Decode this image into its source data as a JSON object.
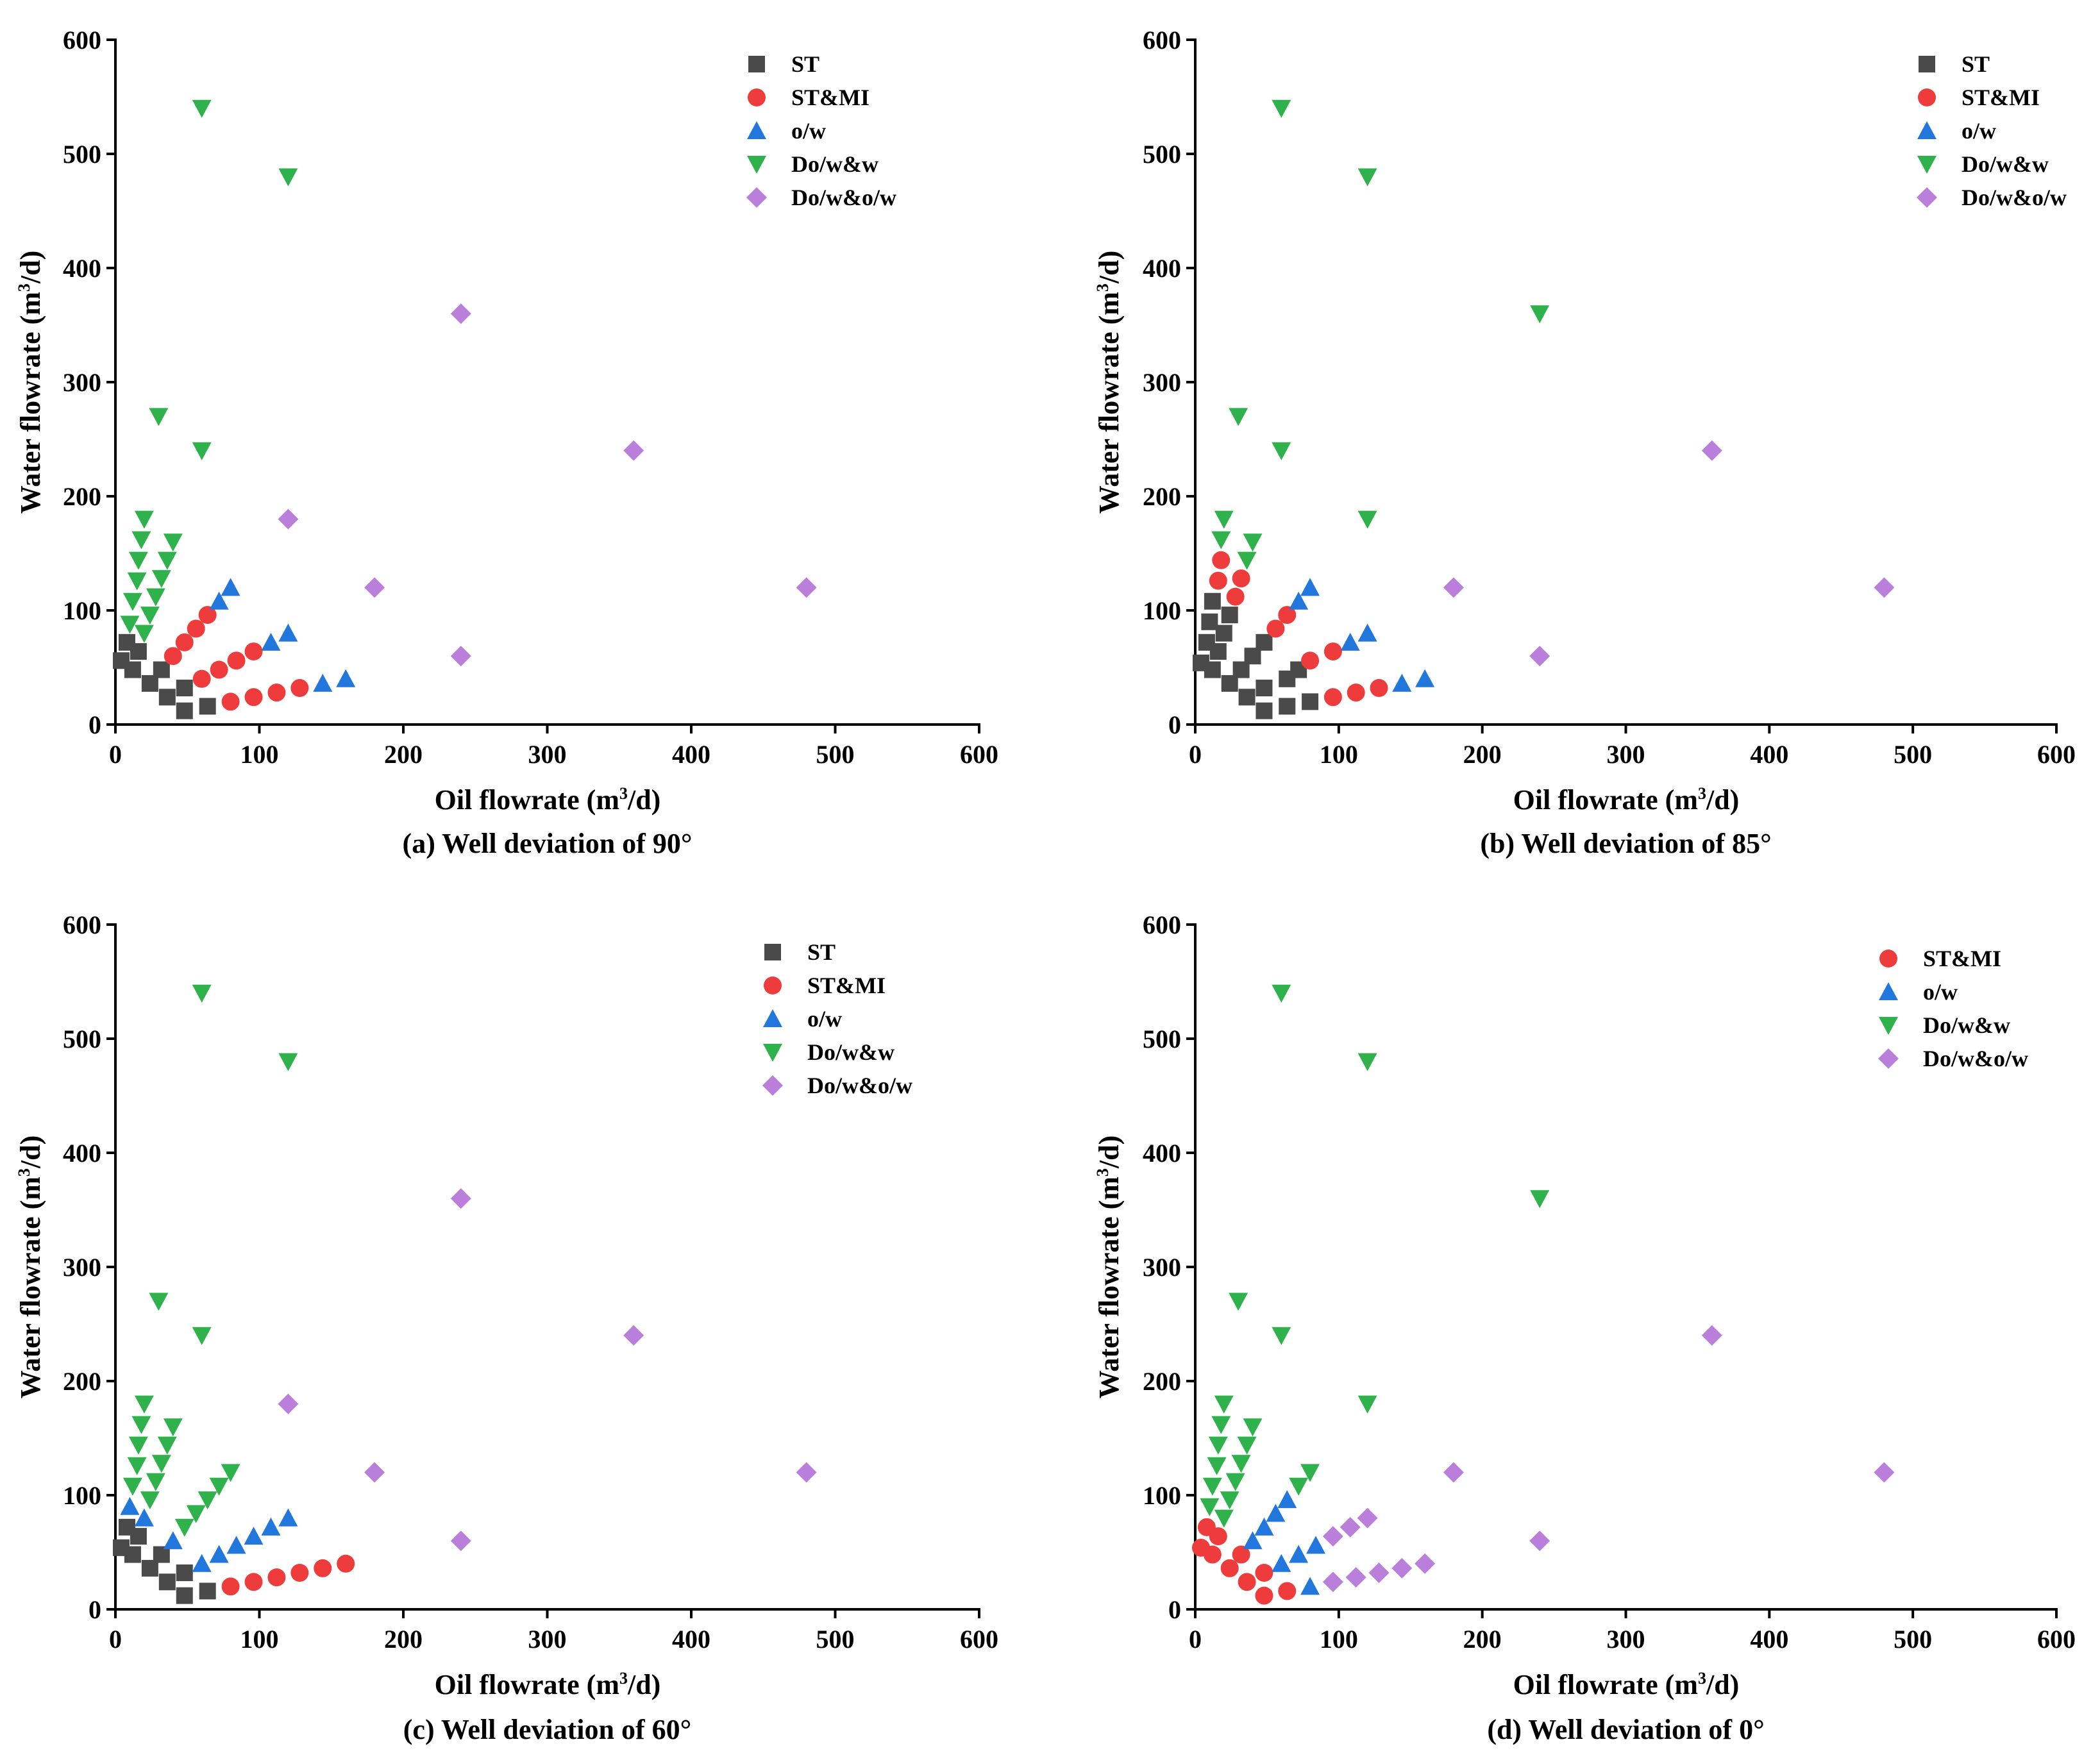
{
  "figure": {
    "styles": {
      "ST": {
        "marker": "square",
        "color": "#4a4a4a"
      },
      "ST&MI": {
        "marker": "circle",
        "color": "#ee3b3b"
      },
      "o/w": {
        "marker": "triangle-up",
        "color": "#2277dd"
      },
      "Do/w&w": {
        "marker": "triangle-down",
        "color": "#2fb24c"
      },
      "Do/w&o/w": {
        "marker": "diamond",
        "color": "#b97fdb"
      }
    }
  },
  "chart_data": [
    {
      "type": "scatter",
      "caption": "(a) Well deviation of 90°",
      "xlabel": "Oil flowrate (m3/d)",
      "ylabel": "Water flowrate (m3/d)",
      "xlabel_parts": [
        "Oil flowrate (m",
        "3",
        "/d)"
      ],
      "ylabel_parts": [
        "Water flowrate (m",
        "3",
        "/d)"
      ],
      "xlim": [
        0,
        600
      ],
      "ylim": [
        0,
        600
      ],
      "xticks": [
        0,
        100,
        200,
        300,
        400,
        500,
        600
      ],
      "yticks": [
        0,
        100,
        200,
        300,
        400,
        500,
        600
      ],
      "legend_position": "top-right",
      "legend": [
        "ST",
        "ST&MI",
        "o/w",
        "Do/w&w",
        "Do/w&o/w"
      ],
      "series": [
        {
          "name": "ST",
          "points": [
            [
              4,
              56
            ],
            [
              8,
              72
            ],
            [
              12,
              48
            ],
            [
              16,
              64
            ],
            [
              24,
              36
            ],
            [
              32,
              48
            ],
            [
              36,
              24
            ],
            [
              48,
              32
            ],
            [
              48,
              12
            ],
            [
              64,
              16
            ]
          ]
        },
        {
          "name": "ST&MI",
          "points": [
            [
              40,
              60
            ],
            [
              48,
              72
            ],
            [
              56,
              84
            ],
            [
              64,
              96
            ],
            [
              60,
              40
            ],
            [
              72,
              48
            ],
            [
              84,
              56
            ],
            [
              96,
              64
            ],
            [
              80,
              20
            ],
            [
              96,
              24
            ],
            [
              112,
              28
            ],
            [
              128,
              32
            ]
          ]
        },
        {
          "name": "o/w",
          "points": [
            [
              72,
              108
            ],
            [
              80,
              120
            ],
            [
              108,
              72
            ],
            [
              120,
              80
            ],
            [
              144,
              36
            ],
            [
              160,
              40
            ]
          ]
        },
        {
          "name": "Do/w&w",
          "points": [
            [
              10,
              88
            ],
            [
              12,
              108
            ],
            [
              15,
              126
            ],
            [
              16,
              144
            ],
            [
              18,
              162
            ],
            [
              20,
              180
            ],
            [
              20,
              80
            ],
            [
              24,
              96
            ],
            [
              28,
              112
            ],
            [
              32,
              128
            ],
            [
              36,
              144
            ],
            [
              40,
              160
            ],
            [
              30,
              270
            ],
            [
              60,
              240
            ],
            [
              60,
              540
            ],
            [
              120,
              480
            ]
          ]
        },
        {
          "name": "Do/w&o/w",
          "points": [
            [
              120,
              180
            ],
            [
              180,
              120
            ],
            [
              240,
              60
            ],
            [
              240,
              360
            ],
            [
              360,
              240
            ],
            [
              480,
              120
            ]
          ]
        }
      ]
    },
    {
      "type": "scatter",
      "caption": "(b) Well deviation of 85°",
      "xlabel": "Oil flowrate (m3/d)",
      "ylabel": "Water flowrate (m3/d)",
      "xlabel_parts": [
        "Oil flowrate (m",
        "3",
        "/d)"
      ],
      "ylabel_parts": [
        "Water flowrate (m",
        "3",
        "/d)"
      ],
      "xlim": [
        0,
        600
      ],
      "ylim": [
        0,
        600
      ],
      "xticks": [
        0,
        100,
        200,
        300,
        400,
        500,
        600
      ],
      "yticks": [
        0,
        100,
        200,
        300,
        400,
        500,
        600
      ],
      "legend_position": "top-right",
      "legend": [
        "ST",
        "ST&MI",
        "o/w",
        "Do/w&w",
        "Do/w&o/w"
      ],
      "series": [
        {
          "name": "ST",
          "points": [
            [
              4,
              54
            ],
            [
              8,
              72
            ],
            [
              10,
              90
            ],
            [
              12,
              108
            ],
            [
              12,
              48
            ],
            [
              16,
              64
            ],
            [
              20,
              80
            ],
            [
              24,
              96
            ],
            [
              24,
              36
            ],
            [
              32,
              48
            ],
            [
              40,
              60
            ],
            [
              48,
              72
            ],
            [
              36,
              24
            ],
            [
              48,
              32
            ],
            [
              48,
              12
            ],
            [
              64,
              40
            ],
            [
              72,
              48
            ],
            [
              64,
              16
            ],
            [
              80,
              20
            ]
          ]
        },
        {
          "name": "ST&MI",
          "points": [
            [
              16,
              126
            ],
            [
              18,
              144
            ],
            [
              28,
              112
            ],
            [
              32,
              128
            ],
            [
              56,
              84
            ],
            [
              64,
              96
            ],
            [
              80,
              56
            ],
            [
              96,
              64
            ],
            [
              96,
              24
            ],
            [
              112,
              28
            ],
            [
              128,
              32
            ]
          ]
        },
        {
          "name": "o/w",
          "points": [
            [
              72,
              108
            ],
            [
              80,
              120
            ],
            [
              108,
              72
            ],
            [
              120,
              80
            ],
            [
              144,
              36
            ],
            [
              160,
              40
            ]
          ]
        },
        {
          "name": "Do/w&w",
          "points": [
            [
              18,
              162
            ],
            [
              20,
              180
            ],
            [
              36,
              144
            ],
            [
              40,
              160
            ],
            [
              30,
              270
            ],
            [
              60,
              240
            ],
            [
              60,
              540
            ],
            [
              120,
              480
            ],
            [
              120,
              180
            ],
            [
              240,
              360
            ]
          ]
        },
        {
          "name": "Do/w&o/w",
          "points": [
            [
              180,
              120
            ],
            [
              240,
              60
            ],
            [
              360,
              240
            ],
            [
              480,
              120
            ]
          ]
        }
      ]
    },
    {
      "type": "scatter",
      "caption": "(c) Well deviation of 60°",
      "xlabel": "Oil flowrate (m3/d)",
      "ylabel": "Water flowrate (m3/d)",
      "xlabel_parts": [
        "Oil flowrate (m",
        "3",
        "/d)"
      ],
      "ylabel_parts": [
        "Water flowrate (m",
        "3",
        "/d)"
      ],
      "xlim": [
        0,
        600
      ],
      "ylim": [
        0,
        600
      ],
      "xticks": [
        0,
        100,
        200,
        300,
        400,
        500,
        600
      ],
      "yticks": [
        0,
        100,
        200,
        300,
        400,
        500,
        600
      ],
      "legend_position": "top-right",
      "legend": [
        "ST",
        "ST&MI",
        "o/w",
        "Do/w&w",
        "Do/w&o/w"
      ],
      "series": [
        {
          "name": "ST",
          "points": [
            [
              4,
              54
            ],
            [
              8,
              72
            ],
            [
              12,
              48
            ],
            [
              16,
              64
            ],
            [
              24,
              36
            ],
            [
              32,
              48
            ],
            [
              36,
              24
            ],
            [
              48,
              32
            ],
            [
              48,
              12
            ],
            [
              64,
              16
            ]
          ]
        },
        {
          "name": "ST&MI",
          "points": [
            [
              80,
              20
            ],
            [
              96,
              24
            ],
            [
              112,
              28
            ],
            [
              128,
              32
            ],
            [
              144,
              36
            ],
            [
              160,
              40
            ]
          ]
        },
        {
          "name": "o/w",
          "points": [
            [
              10,
              90
            ],
            [
              20,
              80
            ],
            [
              40,
              60
            ],
            [
              60,
              40
            ],
            [
              72,
              48
            ],
            [
              84,
              56
            ],
            [
              96,
              64
            ],
            [
              108,
              72
            ],
            [
              120,
              80
            ]
          ]
        },
        {
          "name": "Do/w&w",
          "points": [
            [
              12,
              108
            ],
            [
              15,
              126
            ],
            [
              16,
              144
            ],
            [
              18,
              162
            ],
            [
              20,
              180
            ],
            [
              24,
              96
            ],
            [
              28,
              112
            ],
            [
              32,
              128
            ],
            [
              36,
              144
            ],
            [
              40,
              160
            ],
            [
              48,
              72
            ],
            [
              56,
              84
            ],
            [
              64,
              96
            ],
            [
              72,
              108
            ],
            [
              80,
              120
            ],
            [
              30,
              270
            ],
            [
              60,
              240
            ],
            [
              60,
              540
            ],
            [
              120,
              480
            ]
          ]
        },
        {
          "name": "Do/w&o/w",
          "points": [
            [
              120,
              180
            ],
            [
              180,
              120
            ],
            [
              240,
              60
            ],
            [
              240,
              360
            ],
            [
              360,
              240
            ],
            [
              480,
              120
            ]
          ]
        }
      ]
    },
    {
      "type": "scatter",
      "caption": "(d) Well deviation of 0°",
      "xlabel": "Oil flowrate (m3/d)",
      "ylabel": "Water flowrate (m3/d)",
      "xlabel_parts": [
        "Oil flowrate (m",
        "3",
        "/d)"
      ],
      "ylabel_parts": [
        "Water flowrate (m",
        "3",
        "/d)"
      ],
      "xlim": [
        0,
        600
      ],
      "ylim": [
        0,
        600
      ],
      "xticks": [
        0,
        100,
        200,
        300,
        400,
        500,
        600
      ],
      "yticks": [
        0,
        100,
        200,
        300,
        400,
        500,
        600
      ],
      "legend_position": "top-right",
      "legend": [
        "ST&MI",
        "o/w",
        "Do/w&w",
        "Do/w&o/w"
      ],
      "series": [
        {
          "name": "ST&MI",
          "points": [
            [
              4,
              54
            ],
            [
              8,
              72
            ],
            [
              12,
              48
            ],
            [
              16,
              64
            ],
            [
              24,
              36
            ],
            [
              32,
              48
            ],
            [
              36,
              24
            ],
            [
              48,
              32
            ],
            [
              48,
              12
            ],
            [
              64,
              16
            ]
          ]
        },
        {
          "name": "o/w",
          "points": [
            [
              40,
              60
            ],
            [
              48,
              72
            ],
            [
              56,
              84
            ],
            [
              64,
              96
            ],
            [
              60,
              40
            ],
            [
              72,
              48
            ],
            [
              84,
              56
            ],
            [
              80,
              20
            ]
          ]
        },
        {
          "name": "Do/w&w",
          "points": [
            [
              10,
              90
            ],
            [
              12,
              108
            ],
            [
              15,
              126
            ],
            [
              16,
              144
            ],
            [
              18,
              162
            ],
            [
              20,
              180
            ],
            [
              20,
              80
            ],
            [
              24,
              96
            ],
            [
              28,
              112
            ],
            [
              32,
              128
            ],
            [
              36,
              144
            ],
            [
              40,
              160
            ],
            [
              72,
              108
            ],
            [
              80,
              120
            ],
            [
              30,
              270
            ],
            [
              60,
              240
            ],
            [
              60,
              540
            ],
            [
              120,
              480
            ],
            [
              120,
              180
            ],
            [
              240,
              360
            ]
          ]
        },
        {
          "name": "Do/w&o/w",
          "points": [
            [
              96,
              64
            ],
            [
              108,
              72
            ],
            [
              120,
              80
            ],
            [
              96,
              24
            ],
            [
              112,
              28
            ],
            [
              128,
              32
            ],
            [
              144,
              36
            ],
            [
              160,
              40
            ],
            [
              180,
              120
            ],
            [
              240,
              60
            ],
            [
              360,
              240
            ],
            [
              480,
              120
            ]
          ]
        }
      ]
    }
  ]
}
